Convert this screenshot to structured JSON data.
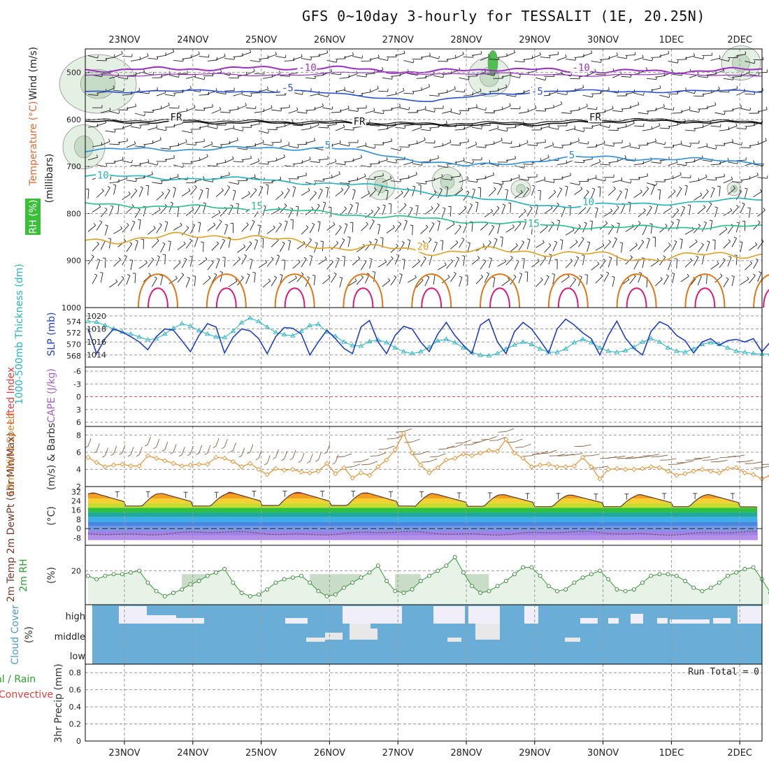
{
  "title": "GFS 0~10day 3-hourly for TESSALIT (1E, 20.25N)",
  "dates": [
    "23NOV",
    "24NOV",
    "25NOV",
    "26NOV",
    "27NOV",
    "28NOV",
    "29NOV",
    "30NOV",
    "1DEC",
    "2DEC"
  ],
  "colors": {
    "temp_cold": "#9b2fc4",
    "temp_m5": "#2c4fd6",
    "temp_fr": "#111111",
    "temp_5": "#2a8ee0",
    "temp_10": "#20b4b8",
    "temp_15": "#22c088",
    "temp_20": "#e0a020",
    "temp_warm": "#e07818",
    "temp_hot": "#d81a7a",
    "slp": "#1f3fc4",
    "thickness": "#27b4c0",
    "wind10": "#e89030",
    "rh": "#2ea02e",
    "cloud": "#6aaed8",
    "li_zero": "#e05050"
  },
  "chart_data": [
    {
      "type": "contour",
      "panel": "upper_air",
      "ylabel_parts": [
        "RH (%)",
        "Temperature (°C)",
        "Wind (m/s)"
      ],
      "ylabel_units": "(millibars)",
      "ylim": [
        1000,
        450
      ],
      "yticks": [
        "500",
        "600",
        "700",
        "800",
        "900",
        "1000"
      ],
      "contour_labels": [
        {
          "text": "-10",
          "t": 2.55,
          "p": 497
        },
        {
          "text": "-10",
          "t": 6.55,
          "p": 497
        },
        {
          "text": "-5",
          "t": 2.3,
          "p": 540
        },
        {
          "text": "-5",
          "t": 5.95,
          "p": 547
        },
        {
          "text": "FR",
          "t": 0.67,
          "p": 602
        },
        {
          "text": "FR",
          "t": 3.35,
          "p": 611
        },
        {
          "text": "FR",
          "t": 6.8,
          "p": 602
        },
        {
          "text": "5",
          "t": 2.93,
          "p": 662
        },
        {
          "text": "5",
          "t": 6.5,
          "p": 683
        },
        {
          "text": "10",
          "t": -0.4,
          "p": 726
        },
        {
          "text": "10",
          "t": 6.7,
          "p": 782
        },
        {
          "text": "15",
          "t": 1.85,
          "p": 791
        },
        {
          "text": "15",
          "t": 5.9,
          "p": 828
        },
        {
          "text": "20",
          "t": 4.28,
          "p": 877
        }
      ]
    },
    {
      "type": "line",
      "panel": "slp_thickness",
      "ylabel_left": "1000-500mb Thickness (dm)",
      "ylabel_right": "SLP (mb)",
      "left_ticks": [
        "574",
        "572",
        "570",
        "568"
      ],
      "right_ticks": [
        "1020",
        "1018",
        "1016",
        "1014"
      ],
      "series": [
        {
          "name": "SLP (mb)",
          "y": [
            1018.0,
            1014.2,
            1016.5,
            1018.0,
            1017.5,
            1016.8,
            1016.0,
            1014.8,
            1016.8,
            1018.0,
            1017.8,
            1016.2,
            1014.5,
            1017.0,
            1018.8,
            1018.3,
            1014.3,
            1016.7,
            1018.0,
            1017.7,
            1016.5,
            1014.2,
            1016.8,
            1018.2,
            1018.1,
            1017.2,
            1014.0,
            1016.0,
            1017.8,
            1016.5,
            1015.0,
            1014.2,
            1018.3,
            1019.3,
            1016.0,
            1014.2,
            1017.0,
            1018.4,
            1018.0,
            1016.0,
            1014.5,
            1017.2,
            1019.0,
            1017.0,
            1015.5,
            1014.2,
            1018.6,
            1019.5,
            1016.0,
            1014.2,
            1017.6,
            1019.0,
            1018.0,
            1016.2,
            1014.3,
            1018.0,
            1019.5,
            1018.6,
            1017.4,
            1016.5,
            1014.0,
            1017.0,
            1019.2,
            1016.6,
            1015.0,
            1014.0,
            1017.6,
            1019.1,
            1018.5,
            1017.0,
            1016.2,
            1014.3,
            1016.0,
            1016.5,
            1015.5,
            1016.2,
            1016.4,
            1016.0,
            1016.5,
            1014.5,
            1016.0
          ]
        },
        {
          "name": "1000-500mb Thickness (dm)",
          "y": [
            574.0,
            573.9,
            573.3,
            572.7,
            572.2,
            571.8,
            571.3,
            570.8,
            571.0,
            571.8,
            572.8,
            573.6,
            573.2,
            572.4,
            571.8,
            571.3,
            571.2,
            572.3,
            573.8,
            574.6,
            574.0,
            573.0,
            572.1,
            571.7,
            571.5,
            572.3,
            573.3,
            573.5,
            572.2,
            571.4,
            570.4,
            569.8,
            569.7,
            570.5,
            570.8,
            570.3,
            569.4,
            568.7,
            568.4,
            568.7,
            569.5,
            570.6,
            570.9,
            570.3,
            569.4,
            568.6,
            568.1,
            568.0,
            568.4,
            569.2,
            569.9,
            570.4,
            570.0,
            569.2,
            568.6,
            568.6,
            569.2,
            570.3,
            570.9,
            570.3,
            569.4,
            568.8,
            568.6,
            568.9,
            569.5,
            570.4,
            571.0,
            570.4,
            569.4,
            568.8,
            568.6,
            569.2,
            570.0,
            570.3,
            570.0,
            569.4,
            568.8,
            568.6,
            568.4,
            568.3,
            568.3
          ]
        }
      ]
    },
    {
      "type": "line",
      "panel": "cape_li",
      "ylabel_left": "Lifted Index",
      "ylabel_right": "CAPE (J/kg)",
      "left_ticks": [
        "-6",
        "-3",
        "0",
        "3",
        "6"
      ],
      "series": [
        {
          "name": "Lifted Index",
          "y": []
        }
      ]
    },
    {
      "type": "line",
      "panel": "wind10m",
      "ylabel_left": "10m Wind Speed",
      "ylabel_right": "(m/s) & Barbs",
      "left_ticks": [
        "8",
        "6",
        "4",
        "2"
      ],
      "ylim": [
        2,
        9
      ],
      "series": [
        {
          "name": "10m Wind Speed",
          "y": [
            5.4,
            4.8,
            4.3,
            4.5,
            4.6,
            4.4,
            4.4,
            5.6,
            5.3,
            5.0,
            4.7,
            4.4,
            4.5,
            4.6,
            4.6,
            5.4,
            5.3,
            4.9,
            4.3,
            4.7,
            4.0,
            3.4,
            4.1,
            3.9,
            4.0,
            3.7,
            3.6,
            3.8,
            4.7,
            3.5,
            4.2,
            3.0,
            3.6,
            3.3,
            4.3,
            5.1,
            6.3,
            8.2,
            5.9,
            4.5,
            3.6,
            4.2,
            5.1,
            5.3,
            5.8,
            5.6,
            5.9,
            6.2,
            6.1,
            7.5,
            5.9,
            5.3,
            4.3,
            4.5,
            4.6,
            4.3,
            4.3,
            4.4,
            5.4,
            4.3,
            2.9,
            4.0,
            4.1,
            4.0,
            4.0,
            4.1,
            4.3,
            4.2,
            3.8,
            3.3,
            3.5,
            3.8,
            4.0,
            3.8,
            3.6,
            4.1,
            4.2,
            3.6,
            3.4,
            2.9,
            3.3
          ]
        }
      ]
    },
    {
      "type": "area",
      "panel": "temperature",
      "ylabel_left": "2m Temp 2m DewPt (6hr Min/Max)",
      "ylabel_right": "(°C)",
      "left_ticks": [
        "32",
        "24",
        "16",
        "8",
        "0",
        "-8"
      ],
      "ylim": [
        -12,
        34
      ],
      "max_t": [
        31,
        30.5,
        31.5,
        31.5,
        31,
        30,
        29.5,
        29,
        29.5,
        29.5
      ],
      "min_t": [
        19,
        19,
        19.5,
        19.5,
        19,
        18.8,
        18.5,
        18.5,
        18.5,
        18.3
      ],
      "series": [
        {
          "name": "2m Temp",
          "y": []
        },
        {
          "name": "2m DewPt",
          "y": []
        }
      ]
    },
    {
      "type": "area",
      "panel": "rh2m",
      "ylabel_left": "2m RH",
      "ylabel_right": "(%)",
      "left_ticks": [
        "20"
      ],
      "ylim": [
        0,
        35
      ],
      "series": [
        {
          "name": "2m RH",
          "y": [
            17,
            15,
            17,
            18,
            18,
            19,
            20,
            13,
            8,
            5,
            7,
            9,
            12,
            14,
            17,
            19,
            21,
            13,
            7,
            5,
            6,
            9,
            13,
            15,
            16,
            17,
            13,
            8,
            5,
            6,
            10,
            13,
            16,
            19,
            23,
            14,
            8,
            7,
            9,
            14,
            17,
            20,
            23,
            28,
            19,
            11,
            7,
            8,
            11,
            14,
            18,
            22,
            22,
            17,
            11,
            8,
            9,
            13,
            16,
            18,
            20,
            15,
            9,
            8,
            9,
            13,
            17,
            18,
            18,
            17,
            14,
            10,
            8,
            10,
            13,
            17,
            19,
            21,
            22,
            15,
            7
          ]
        }
      ]
    },
    {
      "type": "heatmap",
      "panel": "cloud_cover",
      "ylabel_left": "Cloud Cover",
      "ylabel_right": "(%)",
      "row_labels": [
        "high",
        "middle",
        "low"
      ]
    },
    {
      "type": "bar",
      "panel": "precip",
      "ylabel_left": "Total / Rain Convective",
      "ylabel_right": "3hr Precip (mm)",
      "left_ticks": [
        "0.8",
        "0.6",
        "0.4",
        "0.2",
        "0"
      ],
      "ylim": [
        0,
        0.9
      ],
      "run_total": "Run Total = 0",
      "series": [
        {
          "name": "Total / Rain",
          "values": []
        },
        {
          "name": "Convective",
          "values": []
        }
      ]
    }
  ]
}
